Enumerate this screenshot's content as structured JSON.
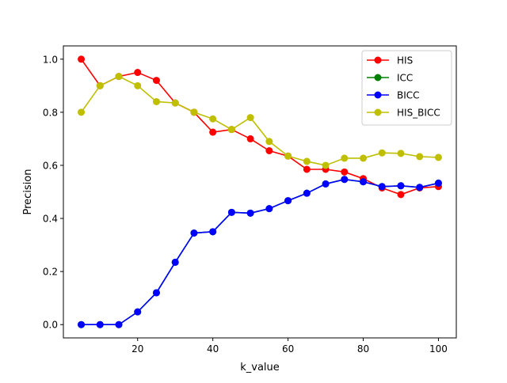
{
  "chart_data": {
    "type": "line",
    "xlabel": "k_value",
    "ylabel": "Precision",
    "xlim": [
      0.25,
      104.75
    ],
    "ylim": [
      -0.05,
      1.05
    ],
    "xticks": [
      20,
      40,
      60,
      80,
      100
    ],
    "yticks": [
      0.0,
      0.2,
      0.4,
      0.6,
      0.8,
      1.0
    ],
    "xtick_labels": [
      "20",
      "40",
      "60",
      "80",
      "100"
    ],
    "ytick_labels": [
      "0.0",
      "0.2",
      "0.4",
      "0.6",
      "0.8",
      "1.0"
    ],
    "grid": false,
    "legend_position": "upper right",
    "x": [
      5,
      10,
      15,
      20,
      25,
      30,
      35,
      40,
      45,
      50,
      55,
      60,
      65,
      70,
      75,
      80,
      85,
      90,
      95,
      100
    ],
    "series": [
      {
        "name": "HIS",
        "color": "#ff0000",
        "values": [
          1.0,
          0.9,
          0.935,
          0.95,
          0.92,
          0.835,
          0.8,
          0.725,
          0.735,
          0.7,
          0.655,
          0.635,
          0.585,
          0.585,
          0.575,
          0.55,
          0.515,
          0.49,
          0.515,
          0.52
        ]
      },
      {
        "name": "ICC",
        "color": "#008000",
        "values": [
          0.0,
          0.0,
          0.0,
          0.048,
          0.12,
          0.235,
          0.345,
          0.35,
          0.423,
          0.42,
          0.437,
          0.467,
          0.495,
          0.53,
          0.547,
          0.538,
          0.52,
          0.523,
          0.517,
          0.533
        ]
      },
      {
        "name": "BICC",
        "color": "#0000ff",
        "values": [
          0.0,
          0.0,
          0.0,
          0.048,
          0.12,
          0.235,
          0.345,
          0.35,
          0.423,
          0.42,
          0.437,
          0.467,
          0.495,
          0.53,
          0.547,
          0.538,
          0.52,
          0.523,
          0.517,
          0.533
        ]
      },
      {
        "name": "HIS_BICC",
        "color": "#bfbf00",
        "values": [
          0.8,
          0.9,
          0.935,
          0.9,
          0.84,
          0.835,
          0.8,
          0.775,
          0.735,
          0.78,
          0.69,
          0.635,
          0.615,
          0.6,
          0.627,
          0.627,
          0.647,
          0.645,
          0.633,
          0.63
        ]
      }
    ]
  }
}
